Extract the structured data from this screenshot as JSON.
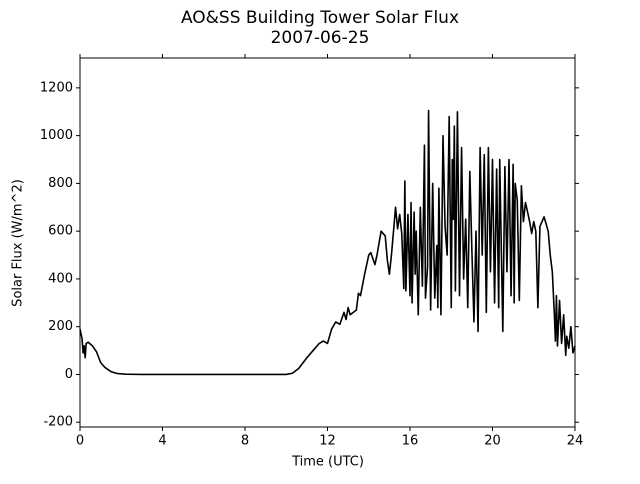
{
  "chart_data": {
    "type": "line",
    "title": "AO&SS Building Tower Solar Flux",
    "subtitle": "2007-06-25",
    "xlabel": "Time (UTC)",
    "ylabel": "Solar Flux (W/m^2)",
    "xlim": [
      0,
      24
    ],
    "xticks": [
      0,
      4,
      8,
      12,
      16,
      20,
      24
    ],
    "ylim": [
      -220,
      1325
    ],
    "yticks": [
      -200,
      0,
      200,
      400,
      600,
      800,
      1000,
      1200
    ],
    "series": [
      {
        "name": "Solar Flux",
        "color": "#000000",
        "x": [
          0,
          0.1,
          0.15,
          0.2,
          0.25,
          0.3,
          0.4,
          0.6,
          0.8,
          1.0,
          1.2,
          1.5,
          1.8,
          2.2,
          3,
          10,
          10.3,
          10.6,
          11,
          11.3,
          11.6,
          11.8,
          12,
          12.2,
          12.4,
          12.6,
          12.8,
          12.9,
          13,
          13.1,
          13.4,
          13.5,
          13.6,
          13.8,
          14,
          14.1,
          14.3,
          14.4,
          14.6,
          14.8,
          14.9,
          15,
          15.1,
          15.3,
          15.4,
          15.5,
          15.6,
          15.7,
          15.75,
          15.8,
          15.9,
          16,
          16.05,
          16.1,
          16.2,
          16.25,
          16.3,
          16.4,
          16.5,
          16.6,
          16.7,
          16.75,
          16.85,
          16.9,
          17,
          17.1,
          17.2,
          17.3,
          17.35,
          17.4,
          17.5,
          17.6,
          17.7,
          17.8,
          17.9,
          18,
          18.05,
          18.1,
          18.15,
          18.2,
          18.3,
          18.4,
          18.5,
          18.6,
          18.7,
          18.8,
          18.9,
          19,
          19.1,
          19.2,
          19.3,
          19.4,
          19.5,
          19.6,
          19.7,
          19.8,
          19.9,
          20,
          20.1,
          20.2,
          20.3,
          20.35,
          20.5,
          20.6,
          20.7,
          20.8,
          20.9,
          21,
          21.05,
          21.1,
          21.2,
          21.3,
          21.4,
          21.5,
          21.6,
          21.8,
          21.9,
          22,
          22.1,
          22.2,
          22.3,
          22.5,
          22.7,
          22.8,
          22.9,
          23,
          23.05,
          23.1,
          23.15,
          23.25,
          23.35,
          23.45,
          23.55,
          23.6,
          23.7,
          23.8,
          23.9,
          24
        ],
        "values": [
          190,
          150,
          90,
          120,
          70,
          130,
          135,
          120,
          95,
          50,
          30,
          12,
          4,
          1,
          0,
          0,
          5,
          25,
          70,
          100,
          130,
          140,
          130,
          190,
          220,
          210,
          260,
          230,
          280,
          250,
          270,
          340,
          330,
          420,
          500,
          510,
          460,
          500,
          600,
          580,
          480,
          420,
          500,
          700,
          610,
          670,
          590,
          360,
          810,
          350,
          670,
          330,
          720,
          300,
          680,
          420,
          600,
          250,
          700,
          370,
          960,
          320,
          450,
          1105,
          270,
          800,
          320,
          540,
          280,
          780,
          250,
          1000,
          620,
          500,
          1080,
          280,
          900,
          650,
          1040,
          350,
          1100,
          330,
          950,
          400,
          650,
          280,
          850,
          520,
          220,
          600,
          180,
          950,
          500,
          920,
          260,
          950,
          430,
          900,
          300,
          860,
          280,
          900,
          180,
          870,
          430,
          900,
          330,
          880,
          300,
          800,
          730,
          310,
          790,
          640,
          720,
          640,
          590,
          640,
          600,
          280,
          620,
          660,
          600,
          500,
          430,
          250,
          140,
          330,
          120,
          310,
          130,
          250,
          80,
          160,
          110,
          200,
          90,
          120
        ]
      }
    ]
  }
}
